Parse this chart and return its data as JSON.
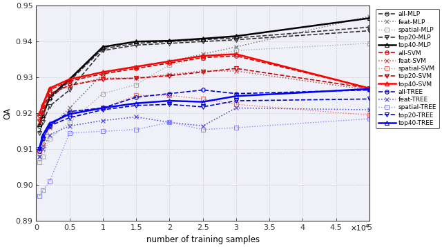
{
  "x": [
    500,
    1000,
    2000,
    5000,
    10000,
    15000,
    20000,
    25000,
    30000,
    50000
  ],
  "xlabel": "number of training samples",
  "ylabel": "OA",
  "xlim": [
    0,
    50000
  ],
  "ylim": [
    0.89,
    0.95
  ],
  "xtick_vals": [
    0,
    5000,
    10000,
    15000,
    20000,
    25000,
    30000,
    35000,
    40000,
    45000,
    50000
  ],
  "xtick_labels": [
    "0",
    "0.5",
    "1",
    "1.5",
    "2",
    "2.5",
    "3",
    "3.5",
    "4",
    "4.5",
    "5"
  ],
  "ytick_vals": [
    0.89,
    0.9,
    0.91,
    0.92,
    0.93,
    0.94,
    0.95
  ],
  "series": [
    {
      "label": "all-MLP",
      "color": "#333333",
      "linestyle": "--",
      "marker": "o",
      "markersize": 4,
      "linewidth": 1.2,
      "values": [
        0.9165,
        0.9195,
        0.924,
        0.929,
        0.938,
        0.9395,
        0.94,
        0.9405,
        0.941,
        0.944
      ]
    },
    {
      "label": "feat-MLP",
      "color": "#777777",
      "linestyle": ":",
      "marker": "x",
      "markersize": 5,
      "linewidth": 1.1,
      "values": [
        0.908,
        0.911,
        0.916,
        0.9215,
        0.931,
        0.933,
        0.9345,
        0.9365,
        0.9385,
        0.947
      ]
    },
    {
      "label": "spatial-MLP",
      "color": "#aaaaaa",
      "linestyle": ":",
      "marker": "s",
      "markersize": 4,
      "linewidth": 1.0,
      "values": [
        0.9065,
        0.908,
        0.913,
        0.9175,
        0.9255,
        0.928,
        0.9335,
        0.9355,
        0.9375,
        0.9395
      ]
    },
    {
      "label": "top20-MLP",
      "color": "#333333",
      "linestyle": "--",
      "marker": "v",
      "markersize": 5,
      "linewidth": 1.2,
      "values": [
        0.9145,
        0.9175,
        0.922,
        0.9265,
        0.9375,
        0.939,
        0.9395,
        0.94,
        0.9405,
        0.943
      ]
    },
    {
      "label": "top40-MLP",
      "color": "#000000",
      "linestyle": "-",
      "marker": "^",
      "markersize": 5,
      "linewidth": 1.8,
      "values": [
        0.917,
        0.9195,
        0.9245,
        0.9295,
        0.9385,
        0.94,
        0.9402,
        0.9408,
        0.9415,
        0.9465
      ]
    },
    {
      "label": "all-SVM",
      "color": "#cc0000",
      "linestyle": "--",
      "marker": "o",
      "markersize": 4,
      "linewidth": 1.2,
      "values": [
        0.9195,
        0.922,
        0.9265,
        0.929,
        0.931,
        0.9325,
        0.934,
        0.9355,
        0.936,
        0.927
      ]
    },
    {
      "label": "feat-SVM",
      "color": "#cc4444",
      "linestyle": ":",
      "marker": "x",
      "markersize": 5,
      "linewidth": 1.1,
      "values": [
        0.9175,
        0.92,
        0.925,
        0.9278,
        0.9298,
        0.9298,
        0.9308,
        0.9318,
        0.9318,
        0.9265
      ]
    },
    {
      "label": "spatial-SVM",
      "color": "#ff6666",
      "linestyle": ":",
      "marker": "s",
      "markersize": 4,
      "linewidth": 1.0,
      "values": [
        0.9095,
        0.911,
        0.9165,
        0.92,
        0.9215,
        0.925,
        0.925,
        0.924,
        0.9225,
        0.9195
      ]
    },
    {
      "label": "top20-SVM",
      "color": "#cc0000",
      "linestyle": "--",
      "marker": "v",
      "markersize": 5,
      "linewidth": 1.2,
      "values": [
        0.918,
        0.921,
        0.9255,
        0.9278,
        0.9295,
        0.9298,
        0.9305,
        0.9315,
        0.9325,
        0.927
      ]
    },
    {
      "label": "top40-SVM",
      "color": "#ff0000",
      "linestyle": "-",
      "marker": "^",
      "markersize": 5,
      "linewidth": 1.8,
      "values": [
        0.92,
        0.9225,
        0.927,
        0.9295,
        0.9315,
        0.933,
        0.9345,
        0.936,
        0.9365,
        0.927
      ]
    },
    {
      "label": "all-TREE",
      "color": "#0000cc",
      "linestyle": "--",
      "marker": "o",
      "markersize": 4,
      "linewidth": 1.2,
      "values": [
        0.9095,
        0.913,
        0.9165,
        0.9205,
        0.9215,
        0.9245,
        0.9255,
        0.9265,
        0.9255,
        0.9265
      ]
    },
    {
      "label": "feat-TREE",
      "color": "#4444cc",
      "linestyle": ":",
      "marker": "x",
      "markersize": 5,
      "linewidth": 1.1,
      "values": [
        0.908,
        0.91,
        0.914,
        0.9165,
        0.918,
        0.919,
        0.9175,
        0.9165,
        0.9215,
        0.921
      ]
    },
    {
      "label": "spatial-TREE",
      "color": "#8888ff",
      "linestyle": ":",
      "marker": "s",
      "markersize": 4,
      "linewidth": 1.0,
      "values": [
        0.897,
        0.8985,
        0.901,
        0.9145,
        0.915,
        0.9155,
        0.9175,
        0.9155,
        0.916,
        0.9185
      ]
    },
    {
      "label": "top20-TREE",
      "color": "#0000cc",
      "linestyle": "--",
      "marker": "v",
      "markersize": 5,
      "linewidth": 1.2,
      "values": [
        0.91,
        0.913,
        0.9165,
        0.9188,
        0.921,
        0.9222,
        0.9225,
        0.9218,
        0.9235,
        0.924
      ]
    },
    {
      "label": "top40-TREE",
      "color": "#0000ff",
      "linestyle": "-",
      "marker": "^",
      "markersize": 5,
      "linewidth": 1.8,
      "values": [
        0.9105,
        0.914,
        0.9172,
        0.9198,
        0.9215,
        0.9228,
        0.9235,
        0.9232,
        0.9248,
        0.9268
      ]
    }
  ],
  "background_color": "#f0f0f8",
  "grid_color": "#bbbbbb"
}
